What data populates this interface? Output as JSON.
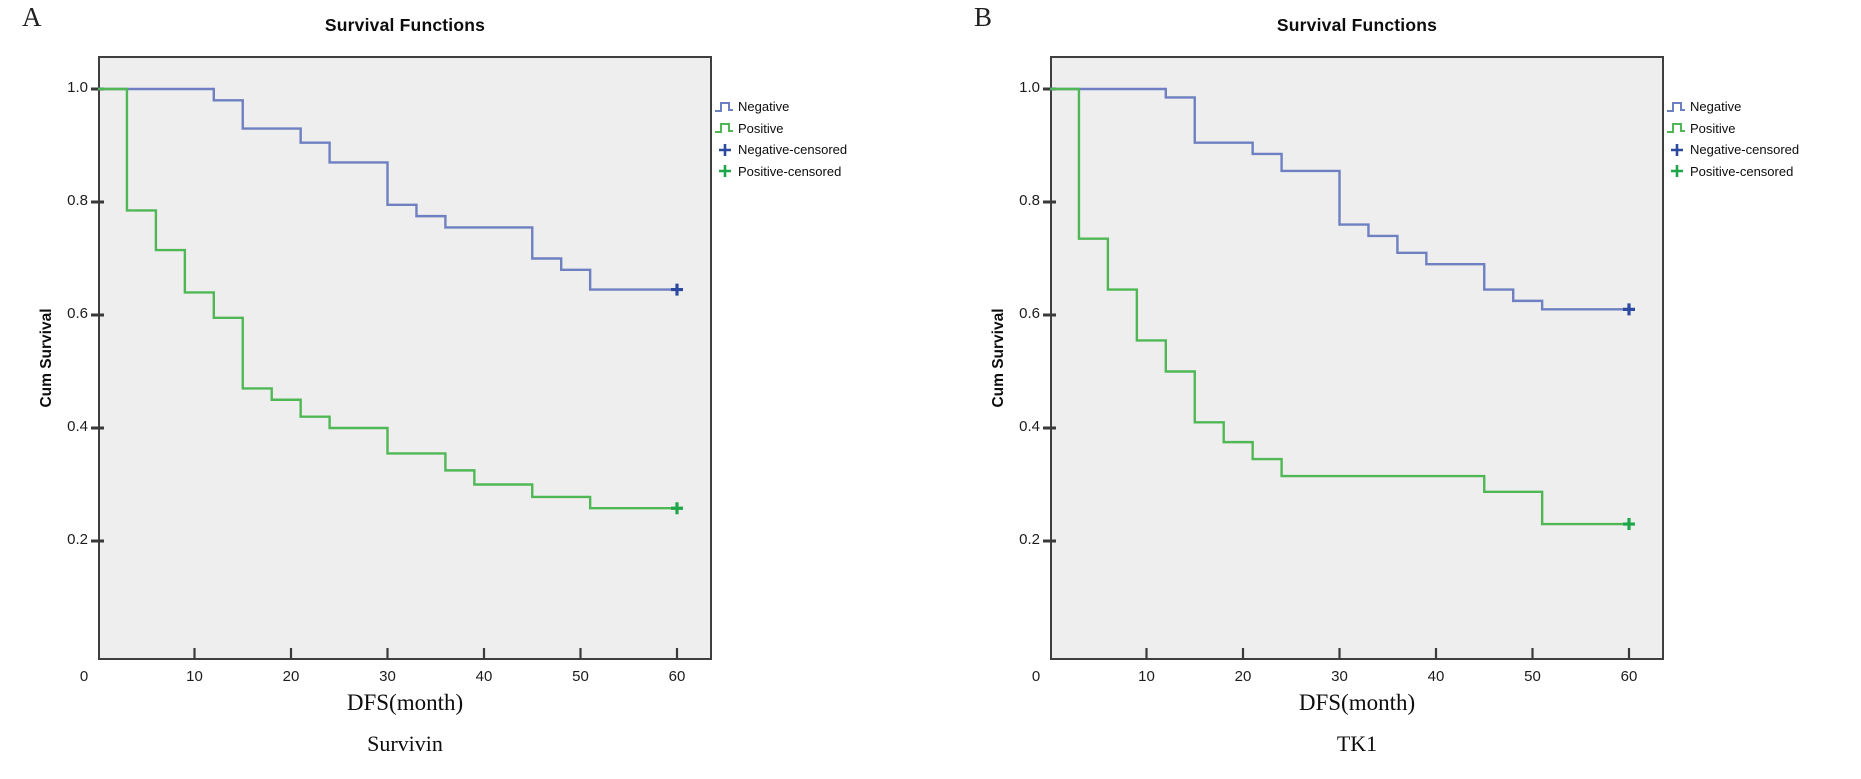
{
  "figure_type": "kaplan-meier-survival-curves",
  "chart_data": [
    {
      "type": "line",
      "subtype": "step-survival",
      "panel_label": "A",
      "title": "Survival Functions",
      "xlabel": "DFS(month)",
      "ylabel": "Cum Survival",
      "sub_label": "Survivin",
      "x_ticks": [
        0,
        10,
        20,
        30,
        40,
        50,
        60
      ],
      "y_ticks": [
        "1.0",
        "0.8",
        "0.6",
        "0.4",
        "0.2"
      ],
      "xlim": [
        0,
        63.6
      ],
      "ylim": [
        0,
        1.06
      ],
      "grid": false,
      "legend_position": "right",
      "legend": [
        "Negative",
        "Positive",
        "Negative-censored",
        "Positive-censored"
      ],
      "colors": {
        "negative": "#6e80c2",
        "positive": "#4fb855",
        "negative_censored": "#2c4aa0",
        "positive_censored": "#1ea648",
        "plot_background": "#eeeeef",
        "frame": "#3f3f3f"
      },
      "series": [
        {
          "name": "Negative",
          "steps": [
            [
              0,
              1.0
            ],
            [
              12,
              0.98
            ],
            [
              15,
              0.93
            ],
            [
              21,
              0.905
            ],
            [
              24,
              0.87
            ],
            [
              30,
              0.795
            ],
            [
              33,
              0.775
            ],
            [
              36,
              0.755
            ],
            [
              45,
              0.7
            ],
            [
              48,
              0.68
            ],
            [
              51,
              0.645
            ]
          ],
          "censored": [
            [
              60,
              0.645
            ]
          ]
        },
        {
          "name": "Positive",
          "steps": [
            [
              0,
              1.0
            ],
            [
              3,
              0.785
            ],
            [
              6,
              0.715
            ],
            [
              9,
              0.64
            ],
            [
              12,
              0.595
            ],
            [
              15,
              0.47
            ],
            [
              18,
              0.45
            ],
            [
              21,
              0.42
            ],
            [
              24,
              0.4
            ],
            [
              30,
              0.355
            ],
            [
              36,
              0.325
            ],
            [
              39,
              0.3
            ],
            [
              45,
              0.278
            ],
            [
              51,
              0.258
            ]
          ],
          "censored": [
            [
              60,
              0.258
            ]
          ]
        }
      ]
    },
    {
      "type": "line",
      "subtype": "step-survival",
      "panel_label": "B",
      "title": "Survival Functions",
      "xlabel": "DFS(month)",
      "ylabel": "Cum Survival",
      "sub_label": "TK1",
      "x_ticks": [
        0,
        10,
        20,
        30,
        40,
        50,
        60
      ],
      "y_ticks": [
        "1.0",
        "0.8",
        "0.6",
        "0.4",
        "0.2"
      ],
      "xlim": [
        0,
        63.6
      ],
      "ylim": [
        0,
        1.06
      ],
      "grid": false,
      "legend_position": "right",
      "legend": [
        "Negative",
        "Positive",
        "Negative-censored",
        "Positive-censored"
      ],
      "colors": {
        "negative": "#6e80c2",
        "positive": "#4fb855",
        "negative_censored": "#2c4aa0",
        "positive_censored": "#1ea648",
        "plot_background": "#eeeeef",
        "frame": "#3f3f3f"
      },
      "series": [
        {
          "name": "Negative",
          "steps": [
            [
              0,
              1.0
            ],
            [
              12,
              0.985
            ],
            [
              15,
              0.905
            ],
            [
              21,
              0.885
            ],
            [
              24,
              0.855
            ],
            [
              30,
              0.76
            ],
            [
              33,
              0.74
            ],
            [
              36,
              0.71
            ],
            [
              39,
              0.69
            ],
            [
              45,
              0.645
            ],
            [
              48,
              0.625
            ],
            [
              51,
              0.61
            ]
          ],
          "censored": [
            [
              60,
              0.61
            ]
          ]
        },
        {
          "name": "Positive",
          "steps": [
            [
              0,
              1.0
            ],
            [
              3,
              0.735
            ],
            [
              6,
              0.645
            ],
            [
              9,
              0.555
            ],
            [
              12,
              0.5
            ],
            [
              15,
              0.41
            ],
            [
              18,
              0.375
            ],
            [
              21,
              0.345
            ],
            [
              24,
              0.315
            ],
            [
              45,
              0.287
            ],
            [
              51,
              0.23
            ]
          ],
          "censored": [
            [
              60,
              0.23
            ]
          ]
        }
      ]
    }
  ]
}
